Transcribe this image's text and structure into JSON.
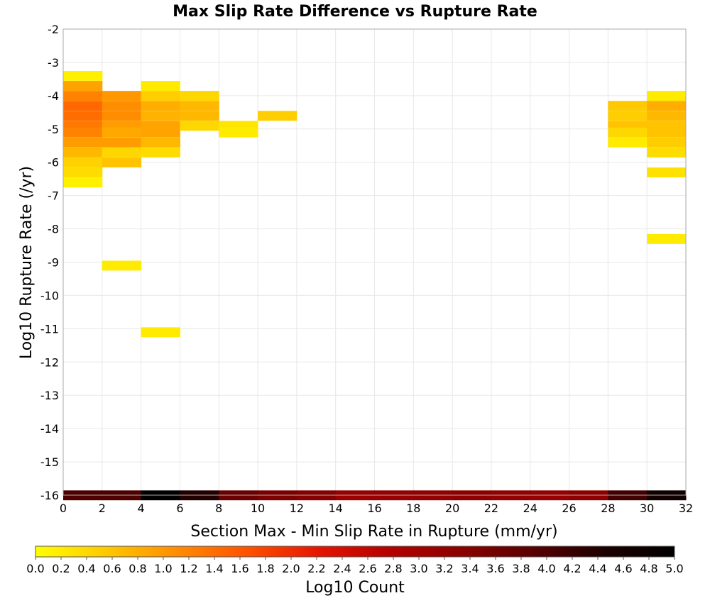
{
  "chart_data": {
    "type": "heatmap",
    "title": "Max Slip Rate Difference vs Rupture Rate",
    "xlabel": "Section Max - Min Slip Rate in Rupture (mm/yr)",
    "ylabel": "Log10 Rupture Rate (/yr)",
    "xlim": [
      0,
      32
    ],
    "ylim": [
      -16,
      -2
    ],
    "x_ticks": [
      "0",
      "2",
      "4",
      "6",
      "8",
      "10",
      "12",
      "14",
      "16",
      "18",
      "20",
      "22",
      "24",
      "26",
      "28",
      "30",
      "32"
    ],
    "y_ticks": [
      "-2",
      "-3",
      "-4",
      "-5",
      "-6",
      "-7",
      "-8",
      "-9",
      "-10",
      "-11",
      "-12",
      "-13",
      "-14",
      "-15",
      "-16"
    ],
    "x_bin_width": 2,
    "y_bin_height": 0.286,
    "grid": true,
    "colorbar": {
      "label": "Log10 Count",
      "min": 0.0,
      "max": 5.0,
      "ticks": [
        "0.0",
        "0.2",
        "0.4",
        "0.6",
        "0.8",
        "1.0",
        "1.2",
        "1.4",
        "1.6",
        "1.8",
        "2.0",
        "2.2",
        "2.4",
        "2.6",
        "2.8",
        "3.0",
        "3.2",
        "3.4",
        "3.6",
        "3.8",
        "4.0",
        "4.2",
        "4.4",
        "4.6",
        "4.8",
        "5.0"
      ],
      "colors": [
        "#ffff00",
        "#ffc800",
        "#ff8c00",
        "#ff5000",
        "#e61400",
        "#b40000",
        "#8c0000",
        "#5a0000",
        "#1e0000",
        "#000000"
      ]
    },
    "cells": [
      {
        "x": 0,
        "y": -3.4,
        "v": 0.15
      },
      {
        "x": 0,
        "y": -3.7,
        "v": 0.9
      },
      {
        "x": 0,
        "y": -4.0,
        "v": 1.2
      },
      {
        "x": 0,
        "y": -4.3,
        "v": 1.45
      },
      {
        "x": 0,
        "y": -4.6,
        "v": 1.4
      },
      {
        "x": 0,
        "y": -4.9,
        "v": 1.3
      },
      {
        "x": 0,
        "y": -5.1,
        "v": 1.2
      },
      {
        "x": 0,
        "y": -5.4,
        "v": 0.95
      },
      {
        "x": 0,
        "y": -5.7,
        "v": 0.7
      },
      {
        "x": 0,
        "y": -6.0,
        "v": 0.45
      },
      {
        "x": 0,
        "y": -6.3,
        "v": 0.35
      },
      {
        "x": 0,
        "y": -6.6,
        "v": 0.15
      },
      {
        "x": 2,
        "y": -4.0,
        "v": 1.0
      },
      {
        "x": 2,
        "y": -4.3,
        "v": 1.1
      },
      {
        "x": 2,
        "y": -4.6,
        "v": 1.1
      },
      {
        "x": 2,
        "y": -4.9,
        "v": 0.95
      },
      {
        "x": 2,
        "y": -5.1,
        "v": 0.85
      },
      {
        "x": 2,
        "y": -5.4,
        "v": 0.95
      },
      {
        "x": 2,
        "y": -5.7,
        "v": 0.4
      },
      {
        "x": 2,
        "y": -6.0,
        "v": 0.6
      },
      {
        "x": 2,
        "y": -9.1,
        "v": 0.2
      },
      {
        "x": 4,
        "y": -3.7,
        "v": 0.2
      },
      {
        "x": 4,
        "y": -4.0,
        "v": 0.5
      },
      {
        "x": 4,
        "y": -4.3,
        "v": 0.8
      },
      {
        "x": 4,
        "y": -4.6,
        "v": 0.75
      },
      {
        "x": 4,
        "y": -4.9,
        "v": 0.9
      },
      {
        "x": 4,
        "y": -5.1,
        "v": 0.9
      },
      {
        "x": 4,
        "y": -5.4,
        "v": 0.7
      },
      {
        "x": 4,
        "y": -5.7,
        "v": 0.35
      },
      {
        "x": 4,
        "y": -11.1,
        "v": 0.2
      },
      {
        "x": 6,
        "y": -4.0,
        "v": 0.4
      },
      {
        "x": 6,
        "y": -4.3,
        "v": 0.7
      },
      {
        "x": 6,
        "y": -4.6,
        "v": 0.7
      },
      {
        "x": 6,
        "y": -4.9,
        "v": 0.4
      },
      {
        "x": 8,
        "y": -4.9,
        "v": 0.25
      },
      {
        "x": 8,
        "y": -5.1,
        "v": 0.2
      },
      {
        "x": 10,
        "y": -4.6,
        "v": 0.5
      },
      {
        "x": 28,
        "y": -4.3,
        "v": 0.55
      },
      {
        "x": 28,
        "y": -4.6,
        "v": 0.5
      },
      {
        "x": 28,
        "y": -4.9,
        "v": 0.6
      },
      {
        "x": 28,
        "y": -5.1,
        "v": 0.4
      },
      {
        "x": 28,
        "y": -5.4,
        "v": 0.2
      },
      {
        "x": 30,
        "y": -4.0,
        "v": 0.2
      },
      {
        "x": 30,
        "y": -4.3,
        "v": 0.8
      },
      {
        "x": 30,
        "y": -4.6,
        "v": 0.7
      },
      {
        "x": 30,
        "y": -4.9,
        "v": 0.6
      },
      {
        "x": 30,
        "y": -5.1,
        "v": 0.6
      },
      {
        "x": 30,
        "y": -5.4,
        "v": 0.5
      },
      {
        "x": 30,
        "y": -5.7,
        "v": 0.35
      },
      {
        "x": 30,
        "y": -6.3,
        "v": 0.3
      },
      {
        "x": 30,
        "y": -8.3,
        "v": 0.2
      },
      {
        "x": 0,
        "y": -16.0,
        "v": 4.0
      },
      {
        "x": 2,
        "y": -16.0,
        "v": 4.0
      },
      {
        "x": 4,
        "y": -16.0,
        "v": 5.0
      },
      {
        "x": 6,
        "y": -16.0,
        "v": 4.4
      },
      {
        "x": 8,
        "y": -16.0,
        "v": 3.7
      },
      {
        "x": 10,
        "y": -16.0,
        "v": 3.5
      },
      {
        "x": 12,
        "y": -16.0,
        "v": 3.4
      },
      {
        "x": 14,
        "y": -16.0,
        "v": 3.15
      },
      {
        "x": 16,
        "y": -16.0,
        "v": 3.2
      },
      {
        "x": 18,
        "y": -16.0,
        "v": 3.25
      },
      {
        "x": 20,
        "y": -16.0,
        "v": 3.3
      },
      {
        "x": 22,
        "y": -16.0,
        "v": 3.25
      },
      {
        "x": 24,
        "y": -16.0,
        "v": 3.2
      },
      {
        "x": 26,
        "y": -16.0,
        "v": 3.3
      },
      {
        "x": 28,
        "y": -16.0,
        "v": 4.1
      },
      {
        "x": 30,
        "y": -16.0,
        "v": 4.7
      }
    ]
  }
}
